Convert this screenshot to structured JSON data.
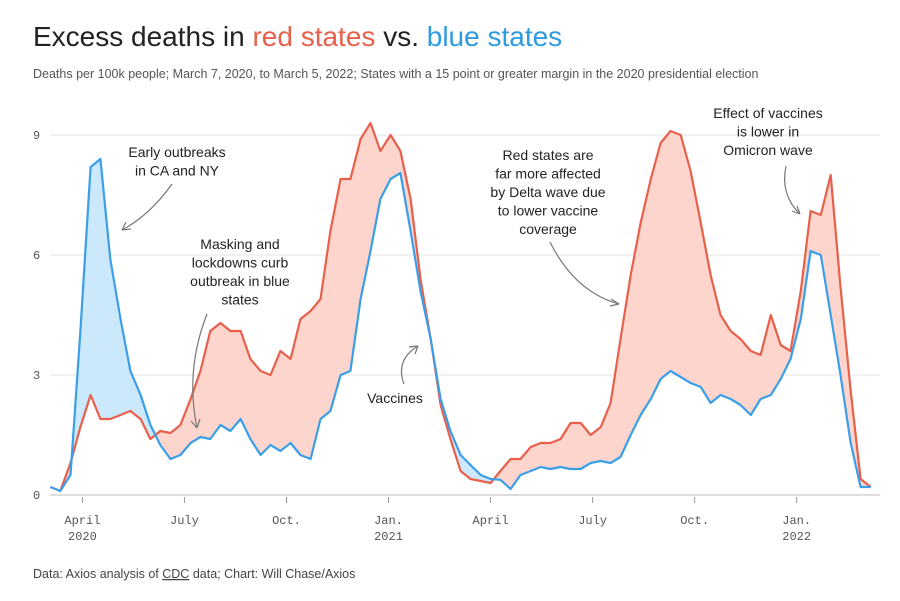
{
  "chart_data": {
    "type": "line",
    "title_parts": [
      "Excess deaths in",
      "red states",
      "vs.",
      "blue states"
    ],
    "subtitle": "Deaths per 100k people; March 7, 2020, to March 5, 2022; States with a 15 point or greater margin in the 2020 presidential election",
    "source_parts": [
      "Data: Axios analysis of",
      "CDC",
      "data; Chart: Will Chase/Axios"
    ],
    "annotations": [
      [
        "Early outbreaks",
        "in CA and NY"
      ],
      [
        "Masking and",
        "lockdowns curb",
        "outbreak in blue",
        "states"
      ],
      [
        "Vaccines"
      ],
      [
        "Red states are",
        "far more affected",
        "by Delta wave due",
        "to lower vaccine",
        "coverage"
      ],
      [
        "Effect of vaccines",
        "is lower in",
        "Omicron wave"
      ]
    ],
    "x": [
      2.06,
      2.35,
      2.65,
      2.94,
      3.24,
      3.53,
      3.82,
      4.12,
      4.41,
      4.71,
      5.0,
      5.29,
      5.59,
      5.88,
      6.18,
      6.47,
      6.76,
      7.06,
      7.35,
      7.65,
      7.94,
      8.24,
      8.53,
      8.82,
      9.12,
      9.41,
      9.71,
      10.0,
      10.29,
      10.59,
      10.88,
      11.18,
      11.47,
      11.76,
      12.06,
      12.35,
      12.65,
      12.94,
      13.24,
      13.53,
      13.82,
      14.12,
      14.41,
      14.71,
      15.0,
      15.29,
      15.59,
      15.88,
      16.18,
      16.47,
      16.76,
      17.06,
      17.35,
      17.65,
      17.94,
      18.24,
      18.53,
      18.82,
      19.12,
      19.41,
      19.71,
      20.0,
      20.29,
      20.59,
      20.88,
      21.18,
      21.47,
      21.76,
      22.06,
      22.35,
      22.65,
      22.94,
      23.24,
      23.53,
      23.82,
      24.12,
      24.41,
      24.71,
      25.0,
      25.29,
      25.59,
      25.88,
      26.18
    ],
    "series": [
      {
        "name": "red states",
        "color": "#e8604c",
        "fill": "#fdd5cc",
        "values": [
          0.2,
          0.1,
          0.8,
          1.7,
          2.5,
          1.9,
          1.9,
          2.0,
          2.1,
          1.9,
          1.4,
          1.6,
          1.55,
          1.75,
          2.4,
          3.1,
          4.1,
          4.3,
          4.1,
          4.1,
          3.4,
          3.1,
          3.0,
          3.6,
          3.4,
          4.4,
          4.6,
          4.9,
          6.6,
          7.9,
          7.9,
          8.9,
          9.3,
          8.6,
          9.0,
          8.6,
          7.4,
          5.4,
          3.9,
          2.25,
          1.4,
          0.6,
          0.4,
          0.35,
          0.3,
          0.6,
          0.9,
          0.9,
          1.2,
          1.3,
          1.3,
          1.4,
          1.8,
          1.8,
          1.5,
          1.7,
          2.3,
          3.9,
          5.5,
          6.8,
          7.9,
          8.8,
          9.1,
          9.0,
          8.1,
          6.8,
          5.5,
          4.5,
          4.1,
          3.9,
          3.6,
          3.5,
          4.5,
          3.75,
          3.6,
          5.1,
          7.1,
          7.0,
          8.0,
          5.2,
          2.6,
          0.4,
          0.2
        ]
      },
      {
        "name": "blue states",
        "color": "#3a9fe8",
        "fill": "#cce8fb",
        "values": [
          0.2,
          0.1,
          0.5,
          4.1,
          8.2,
          8.4,
          5.9,
          4.4,
          3.1,
          2.5,
          1.75,
          1.25,
          0.9,
          1.0,
          1.3,
          1.45,
          1.4,
          1.75,
          1.6,
          1.9,
          1.4,
          1.0,
          1.25,
          1.1,
          1.3,
          1.0,
          0.9,
          1.9,
          2.1,
          3.0,
          3.1,
          4.9,
          6.1,
          7.4,
          7.9,
          8.05,
          6.6,
          5.1,
          3.9,
          2.4,
          1.6,
          1.0,
          0.75,
          0.5,
          0.4,
          0.38,
          0.15,
          0.5,
          0.6,
          0.7,
          0.65,
          0.7,
          0.65,
          0.65,
          0.8,
          0.85,
          0.8,
          0.95,
          1.5,
          2.0,
          2.4,
          2.9,
          3.1,
          2.95,
          2.8,
          2.7,
          2.3,
          2.5,
          2.4,
          2.25,
          2.0,
          2.4,
          2.5,
          2.9,
          3.4,
          4.4,
          6.1,
          6.0,
          4.5,
          3.0,
          1.3,
          0.2,
          0.2
        ]
      }
    ],
    "xlim": [
      1.9,
      26.45
    ],
    "xticks": [
      {
        "value": 3,
        "label": "April 2020"
      },
      {
        "value": 6,
        "label": "July"
      },
      {
        "value": 9,
        "label": "Oct."
      },
      {
        "value": 12,
        "label": "Jan. 2021"
      },
      {
        "value": 15,
        "label": "April"
      },
      {
        "value": 18,
        "label": "July"
      },
      {
        "value": 21,
        "label": "Oct."
      },
      {
        "value": 24,
        "label": "Jan. 2022"
      }
    ],
    "ylim": [
      0,
      9.6
    ],
    "yticks": [
      0,
      3,
      6,
      9
    ],
    "grid": true
  }
}
